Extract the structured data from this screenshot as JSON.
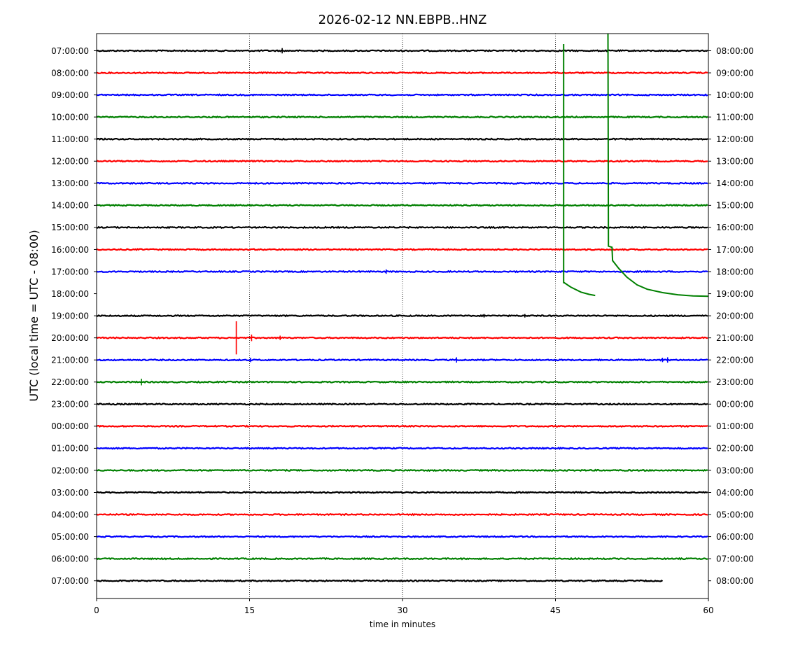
{
  "chart_data": {
    "type": "line",
    "title": "2026-02-12 NN.EBPB..HNZ",
    "xlabel": "time in minutes",
    "ylabel": "UTC (local time = UTC - 08:00)",
    "xlim": [
      0,
      60
    ],
    "x_ticks": [
      0,
      15,
      30,
      45,
      60
    ],
    "x_tick_labels": [
      "0",
      "15",
      "30",
      "45",
      "60"
    ],
    "grid": "vertical dotted at 15, 30, 45",
    "left_tick_labels": [
      "07:00:00",
      "08:00:00",
      "09:00:00",
      "10:00:00",
      "11:00:00",
      "12:00:00",
      "13:00:00",
      "14:00:00",
      "15:00:00",
      "16:00:00",
      "17:00:00",
      "18:00:00",
      "19:00:00",
      "20:00:00",
      "21:00:00",
      "22:00:00",
      "23:00:00",
      "00:00:00",
      "01:00:00",
      "02:00:00",
      "03:00:00",
      "04:00:00",
      "05:00:00",
      "06:00:00",
      "07:00:00"
    ],
    "right_tick_labels": [
      "08:00:00",
      "09:00:00",
      "10:00:00",
      "11:00:00",
      "12:00:00",
      "13:00:00",
      "14:00:00",
      "15:00:00",
      "16:00:00",
      "17:00:00",
      "18:00:00",
      "19:00:00",
      "20:00:00",
      "21:00:00",
      "22:00:00",
      "23:00:00",
      "00:00:00",
      "01:00:00",
      "02:00:00",
      "03:00:00",
      "04:00:00",
      "05:00:00",
      "06:00:00",
      "07:00:00",
      "08:00:00"
    ],
    "trace_colors": [
      "#000000",
      "#ff0000",
      "#0000ff",
      "#008000"
    ],
    "traces": [
      {
        "row": 0,
        "color": "#000000",
        "x_end": 60,
        "events": [
          {
            "x": 18.2,
            "amp": 0.12
          }
        ]
      },
      {
        "row": 1,
        "color": "#ff0000",
        "x_end": 60,
        "events": []
      },
      {
        "row": 2,
        "color": "#0000ff",
        "x_end": 60,
        "events": []
      },
      {
        "row": 3,
        "color": "#008000",
        "x_end": 60,
        "events": []
      },
      {
        "row": 4,
        "color": "#000000",
        "x_end": 60,
        "events": []
      },
      {
        "row": 5,
        "color": "#ff0000",
        "x_end": 60,
        "events": []
      },
      {
        "row": 6,
        "color": "#0000ff",
        "x_end": 60,
        "events": []
      },
      {
        "row": 7,
        "color": "#008000",
        "x_end": 60,
        "events": []
      },
      {
        "row": 8,
        "color": "#000000",
        "x_end": 60,
        "events": []
      },
      {
        "row": 9,
        "color": "#ff0000",
        "x_end": 60,
        "events": []
      },
      {
        "row": 10,
        "color": "#0000ff",
        "x_end": 60,
        "events": [
          {
            "x": 28.4,
            "amp": 0.1
          }
        ]
      },
      {
        "row": 11,
        "color": "#008000",
        "x_end": 60,
        "events": [],
        "hidden": true
      },
      {
        "row": 12,
        "color": "#000000",
        "x_end": 60,
        "events": [
          {
            "x": 38.0,
            "amp": 0.08
          },
          {
            "x": 42.0,
            "amp": 0.08
          }
        ]
      },
      {
        "row": 13,
        "color": "#ff0000",
        "x_end": 60,
        "events": [
          {
            "x": 13.7,
            "amp": 0.75
          },
          {
            "x": 15.2,
            "amp": 0.15
          },
          {
            "x": 18.0,
            "amp": 0.1
          }
        ]
      },
      {
        "row": 14,
        "color": "#0000ff",
        "x_end": 60,
        "events": [
          {
            "x": 15.1,
            "amp": 0.1
          },
          {
            "x": 35.3,
            "amp": 0.12
          },
          {
            "x": 55.5,
            "amp": 0.1
          },
          {
            "x": 56.0,
            "amp": 0.12
          }
        ]
      },
      {
        "row": 15,
        "color": "#008000",
        "x_end": 60,
        "events": [
          {
            "x": 4.4,
            "amp": 0.15
          }
        ]
      },
      {
        "row": 16,
        "color": "#000000",
        "x_end": 60,
        "events": []
      },
      {
        "row": 17,
        "color": "#ff0000",
        "x_end": 60,
        "events": []
      },
      {
        "row": 18,
        "color": "#0000ff",
        "x_end": 60,
        "events": []
      },
      {
        "row": 19,
        "color": "#008000",
        "x_end": 60,
        "events": []
      },
      {
        "row": 20,
        "color": "#000000",
        "x_end": 60,
        "events": []
      },
      {
        "row": 21,
        "color": "#ff0000",
        "x_end": 60,
        "events": []
      },
      {
        "row": 22,
        "color": "#0000ff",
        "x_end": 60,
        "events": []
      },
      {
        "row": 23,
        "color": "#008000",
        "x_end": 60,
        "events": []
      },
      {
        "row": 24,
        "color": "#000000",
        "x_end": 55.6,
        "events": []
      }
    ],
    "anomalies": [
      {
        "color": "#008000",
        "name": "offset-excursion-1",
        "points": [
          [
            45.8,
            -0.3
          ],
          [
            45.8,
            10.5
          ],
          [
            45.85,
            10.5
          ],
          [
            46.5,
            10.7
          ],
          [
            47.5,
            10.93
          ],
          [
            48.3,
            11.03
          ],
          [
            48.9,
            11.08
          ]
        ]
      },
      {
        "color": "#008000",
        "name": "offset-excursion-2",
        "points": [
          [
            50.15,
            -1.0
          ],
          [
            50.2,
            8.85
          ],
          [
            50.55,
            8.9
          ],
          [
            50.6,
            9.5
          ],
          [
            51.2,
            9.85
          ],
          [
            52.0,
            10.25
          ],
          [
            53.0,
            10.6
          ],
          [
            54.0,
            10.8
          ],
          [
            55.5,
            10.95
          ],
          [
            57.0,
            11.05
          ],
          [
            58.5,
            11.1
          ],
          [
            60.0,
            11.12
          ]
        ]
      }
    ]
  }
}
